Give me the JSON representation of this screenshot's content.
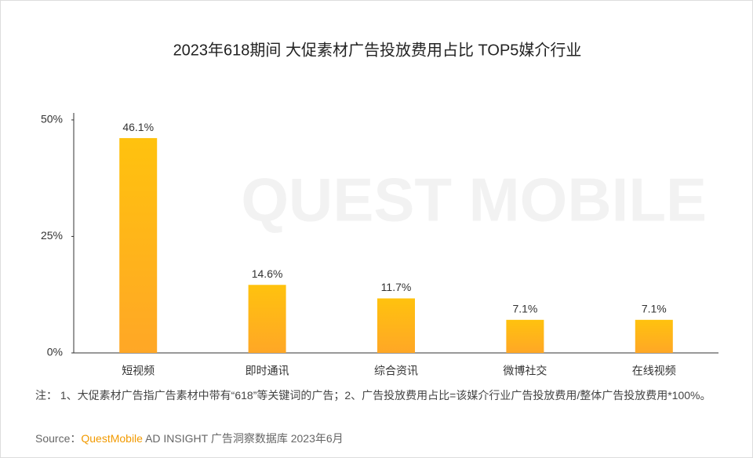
{
  "chart_data": {
    "type": "bar",
    "title": "2023年618期间 大促素材广告投放费用占比 TOP5媒介行业",
    "watermark": "QUEST MOBILE",
    "categories": [
      "短视频",
      "即时通讯",
      "综合资讯",
      "微博社交",
      "在线视频"
    ],
    "values": [
      46.1,
      14.6,
      11.7,
      7.1,
      7.1
    ],
    "value_labels": [
      "46.1%",
      "14.6%",
      "11.7%",
      "7.1%",
      "7.1%"
    ],
    "color": "#ffc20e",
    "ylim": [
      0,
      51.5
    ],
    "yticks": [
      {
        "value": 0,
        "label": "0%"
      },
      {
        "value": 25,
        "label": "25%"
      },
      {
        "value": 50,
        "label": "50%"
      }
    ],
    "grid": false,
    "note": "注： 1、大促素材广告指广告素材中带有“618”等关键词的广告；2、广告投放费用占比=该媒介行业广告投放费用/整体广告投放费用*100%。",
    "source": {
      "label": "Source：",
      "brand": "QuestMobile",
      "text": "AD INSIGHT 广告洞察数据库 2023年6月"
    }
  }
}
